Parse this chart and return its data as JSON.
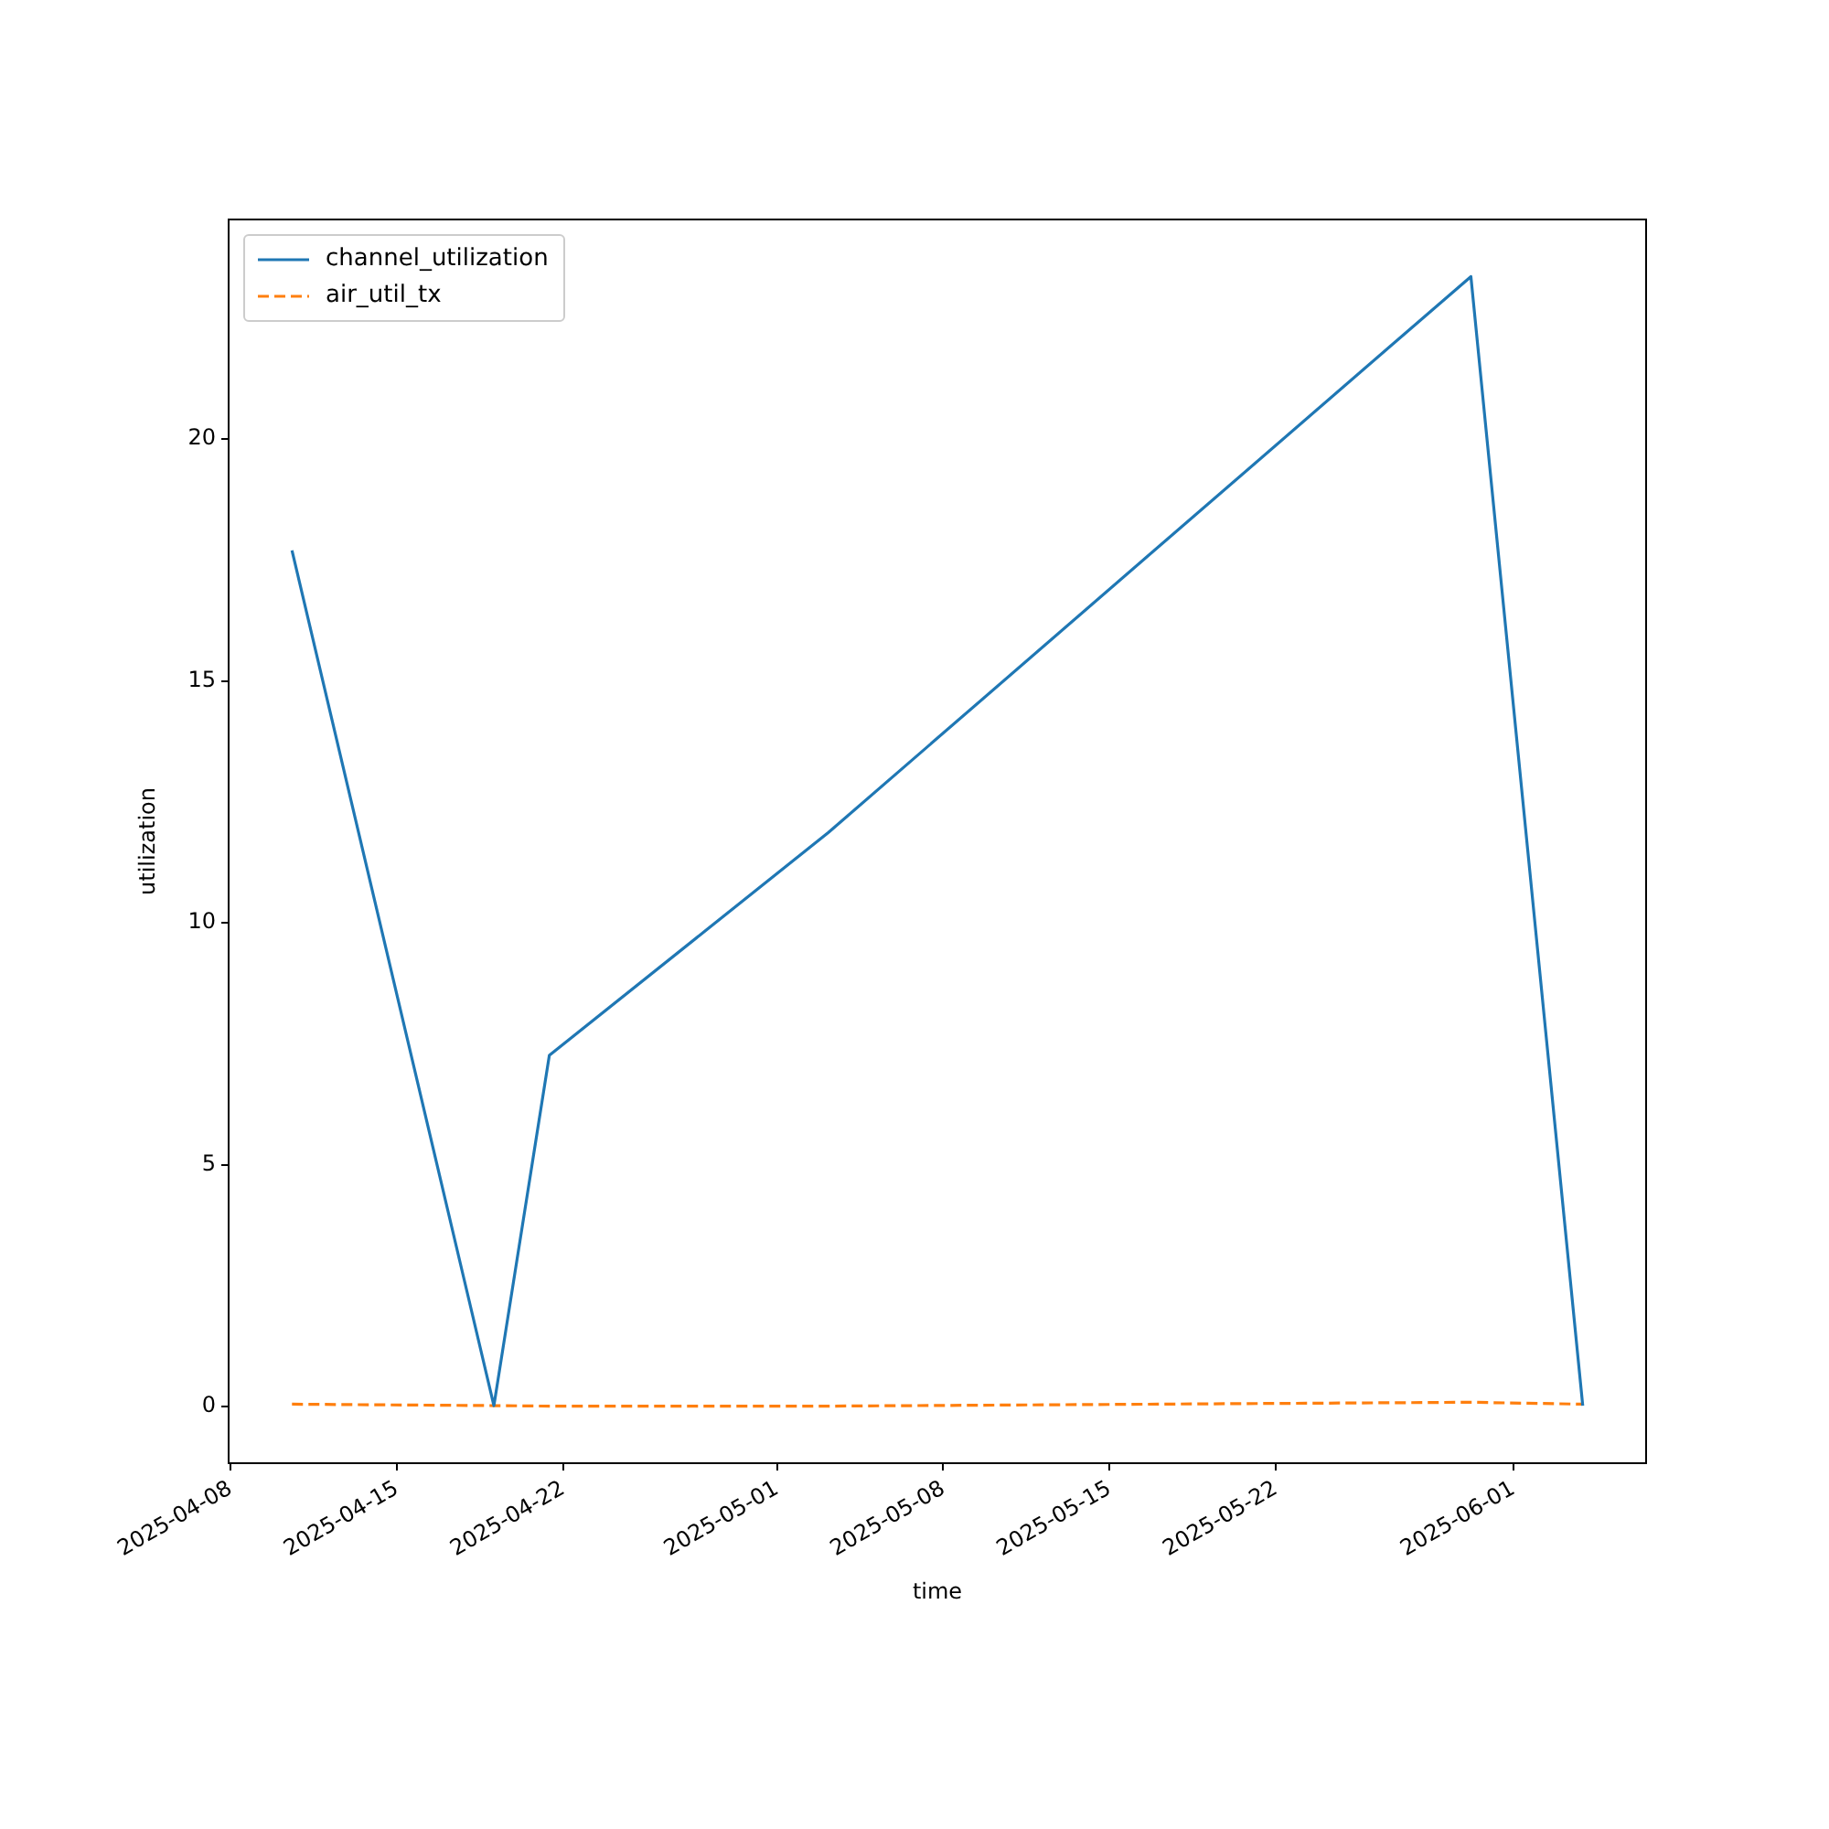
{
  "chart_data": {
    "type": "line",
    "xlabel": "time",
    "ylabel": "utilization",
    "x": [
      "2025-04-10T14:00",
      "2025-04-19T02:00",
      "2025-04-21T10:00",
      "2025-05-03T04:00",
      "2025-05-30T05:00",
      "2025-06-03T22:00"
    ],
    "series": [
      {
        "name": "channel_utilization",
        "color": "#1f77b4",
        "line_style": "solid",
        "values": [
          17.7,
          0.02,
          7.26,
          11.87,
          23.36,
          0.02
        ]
      },
      {
        "name": "air_util_tx",
        "color": "#ff7f0e",
        "line_style": "dashed",
        "values": [
          0.05,
          0.02,
          0.01,
          0.01,
          0.09,
          0.05
        ]
      }
    ],
    "xlim": [
      "2025-04-07T22:00",
      "2025-06-06T14:00"
    ],
    "xticks": [
      "2025-04-08",
      "2025-04-15",
      "2025-04-22",
      "2025-05-01",
      "2025-05-08",
      "2025-05-15",
      "2025-05-22",
      "2025-06-01"
    ],
    "ylim": [
      -1.17,
      24.54
    ],
    "yticks": [
      0,
      5,
      10,
      15,
      20
    ],
    "grid": false,
    "legend": "top left",
    "marker": "none"
  }
}
